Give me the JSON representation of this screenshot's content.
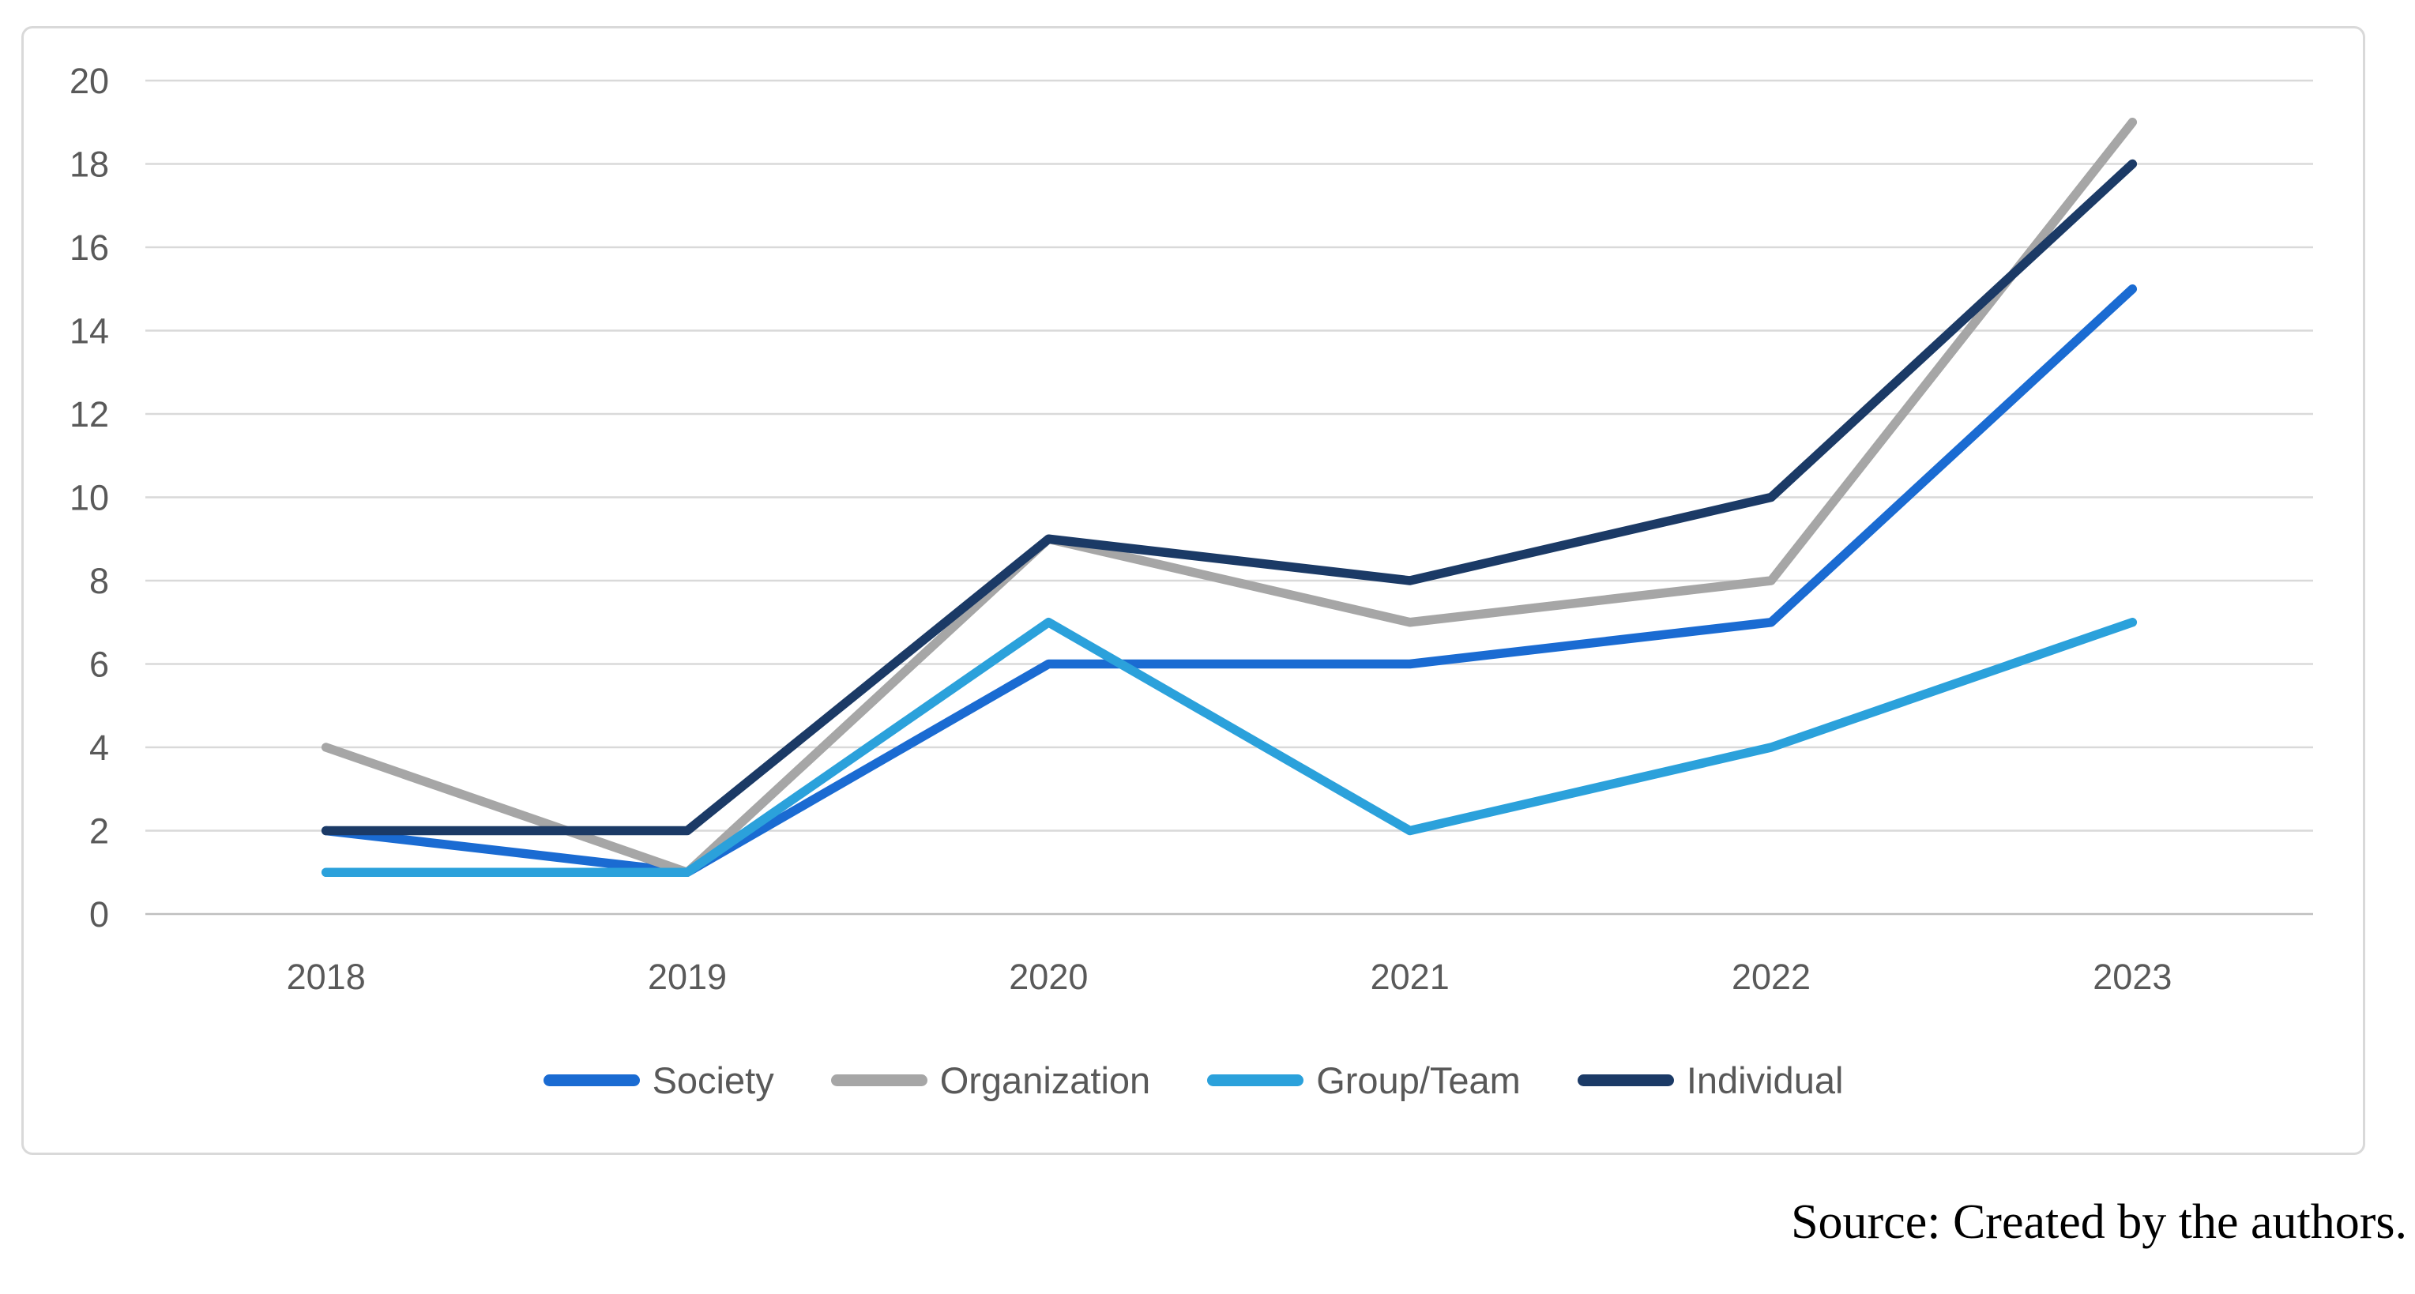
{
  "source_note": "Source: Created by the authors.",
  "chart_data": {
    "type": "line",
    "title": "",
    "xlabel": "",
    "ylabel": "",
    "categories": [
      "2018",
      "2019",
      "2020",
      "2021",
      "2022",
      "2023"
    ],
    "series": [
      {
        "name": "Society",
        "color": "#1a6bd2",
        "values": [
          2,
          1,
          6,
          6,
          7,
          15
        ]
      },
      {
        "name": "Organization",
        "color": "#a6a6a6",
        "values": [
          4,
          1,
          9,
          7,
          8,
          19
        ]
      },
      {
        "name": "Group/Team",
        "color": "#2ba1db",
        "values": [
          1,
          1,
          7,
          2,
          4,
          7
        ]
      },
      {
        "name": "Individual",
        "color": "#1b3a66",
        "values": [
          2,
          2,
          9,
          8,
          10,
          18
        ]
      }
    ],
    "ylim": [
      0,
      20
    ],
    "yticks": [
      0,
      2,
      4,
      6,
      8,
      10,
      12,
      14,
      16,
      18,
      20
    ],
    "grid": true,
    "legend_position": "bottom",
    "colors": {
      "gridline": "#d9d9d9",
      "axis_line": "#bfbfbf",
      "tick_label": "#595959",
      "legend_label": "#595959",
      "frame_border": "#d9d9d9",
      "background": "#ffffff"
    }
  }
}
